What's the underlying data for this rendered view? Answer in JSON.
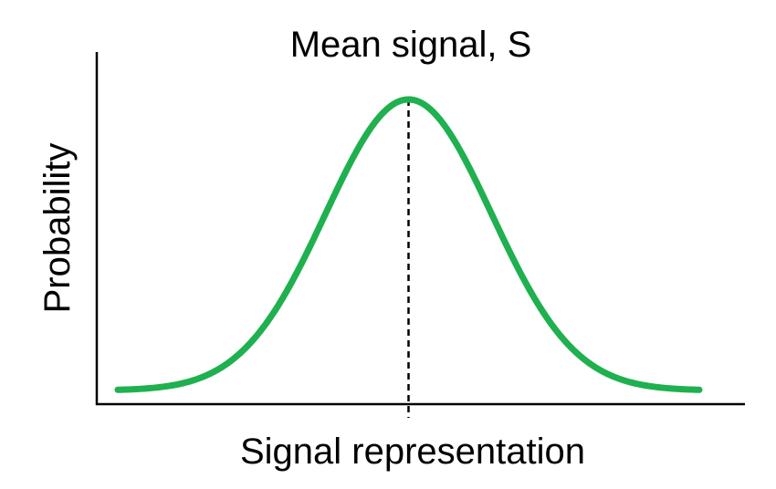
{
  "chart_data": {
    "type": "line",
    "title": "Mean signal, S",
    "xlabel": "Signal representation",
    "ylabel": "Probability",
    "distribution": "normal",
    "mean": 0,
    "sd": 1,
    "xlim": [
      -3.5,
      3.5
    ],
    "ylim": [
      0,
      1
    ],
    "x_ticks": [],
    "y_ticks": [],
    "grid": false,
    "legend": "none",
    "mean_marker": {
      "x": 0,
      "style": "dashed"
    },
    "series": [
      {
        "color": "#1fb04f",
        "x": [
          -3.5,
          -3.0,
          -2.5,
          -2.0,
          -1.5,
          -1.0,
          -0.5,
          0.0,
          0.5,
          1.0,
          1.5,
          2.0,
          2.5,
          3.0,
          3.5
        ],
        "y": [
          0.002,
          0.011,
          0.044,
          0.135,
          0.325,
          0.607,
          0.882,
          1.0,
          0.882,
          0.607,
          0.325,
          0.135,
          0.044,
          0.011,
          0.002
        ]
      }
    ]
  }
}
